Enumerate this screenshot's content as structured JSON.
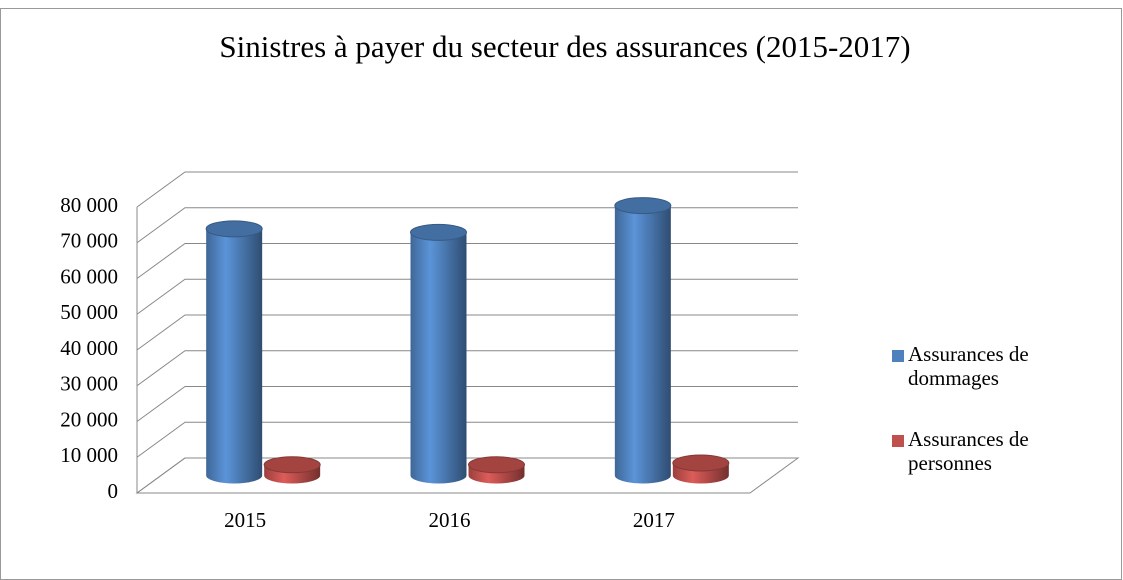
{
  "chart_data": {
    "type": "bar3d",
    "title": "Sinistres à payer du secteur  des assurances (2015-2017)",
    "categories": [
      "2015",
      "2016",
      "2017"
    ],
    "series": [
      {
        "name": "Assurances de dommages",
        "color": "#4f81bd",
        "values": [
          69000,
          68000,
          75500
        ]
      },
      {
        "name": "Assurances de personnes",
        "color": "#c0504d",
        "values": [
          3000,
          3000,
          3500
        ]
      }
    ],
    "ylim": [
      0,
      80000
    ],
    "yticks": [
      0,
      {
        "value": 10000,
        "label": "10 000"
      },
      {
        "value": 20000,
        "label": "20 000"
      },
      {
        "value": 30000,
        "label": "30 000"
      },
      {
        "value": 40000,
        "label": "40 000"
      },
      {
        "value": 50000,
        "label": "50 000"
      },
      {
        "value": 60000,
        "label": "60 000"
      },
      {
        "value": 70000,
        "label": "70 000"
      },
      {
        "value": 80000,
        "label": "80 000"
      }
    ],
    "grid": true,
    "legend": "right"
  }
}
